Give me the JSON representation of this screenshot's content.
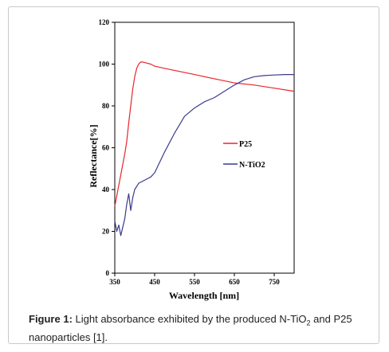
{
  "chart_data": {
    "type": "line",
    "xlabel": "Wavelength [nm]",
    "ylabel": "Reflectance[%]",
    "xlim": [
      350,
      800
    ],
    "ylim": [
      0,
      120
    ],
    "xticks": [
      "350",
      "450",
      "550",
      "650",
      "750"
    ],
    "yticks": [
      "0",
      "20",
      "40",
      "60",
      "80",
      "100",
      "120"
    ],
    "grid": false,
    "legend_placement": "center-right",
    "series": [
      {
        "name": "P25",
        "color": "#e8262b",
        "x": [
          350,
          355,
          360,
          365,
          370,
          375,
          380,
          385,
          390,
          395,
          400,
          405,
          410,
          415,
          420,
          430,
          440,
          450,
          475,
          500,
          550,
          600,
          650,
          700,
          750,
          800
        ],
        "y": [
          32,
          37,
          42,
          47,
          52,
          57,
          63,
          72,
          80,
          88,
          94,
          98,
          100,
          101,
          101,
          100.5,
          100,
          99,
          98,
          97,
          95,
          93,
          91,
          90,
          88.5,
          87
        ]
      },
      {
        "name": "N-TiO2",
        "color": "#3a3b8c",
        "x": [
          350,
          355,
          360,
          365,
          370,
          375,
          380,
          385,
          390,
          395,
          400,
          410,
          420,
          430,
          440,
          450,
          460,
          475,
          500,
          525,
          550,
          575,
          600,
          625,
          650,
          675,
          700,
          725,
          750,
          775,
          800
        ],
        "y": [
          25,
          20,
          23,
          18,
          22,
          26,
          33,
          38,
          30,
          36,
          40,
          43,
          44,
          45,
          46,
          48,
          52,
          58,
          67,
          75,
          79,
          82,
          84,
          87,
          90,
          92.5,
          94,
          94.5,
          94.8,
          95,
          95
        ]
      }
    ]
  },
  "caption": {
    "label": "Figure 1:",
    "text_before_sub": " Light absorbance exhibited by the produced N-TiO",
    "subscript": "2",
    "text_after_sub": " and P25 nanoparticles [1]."
  }
}
